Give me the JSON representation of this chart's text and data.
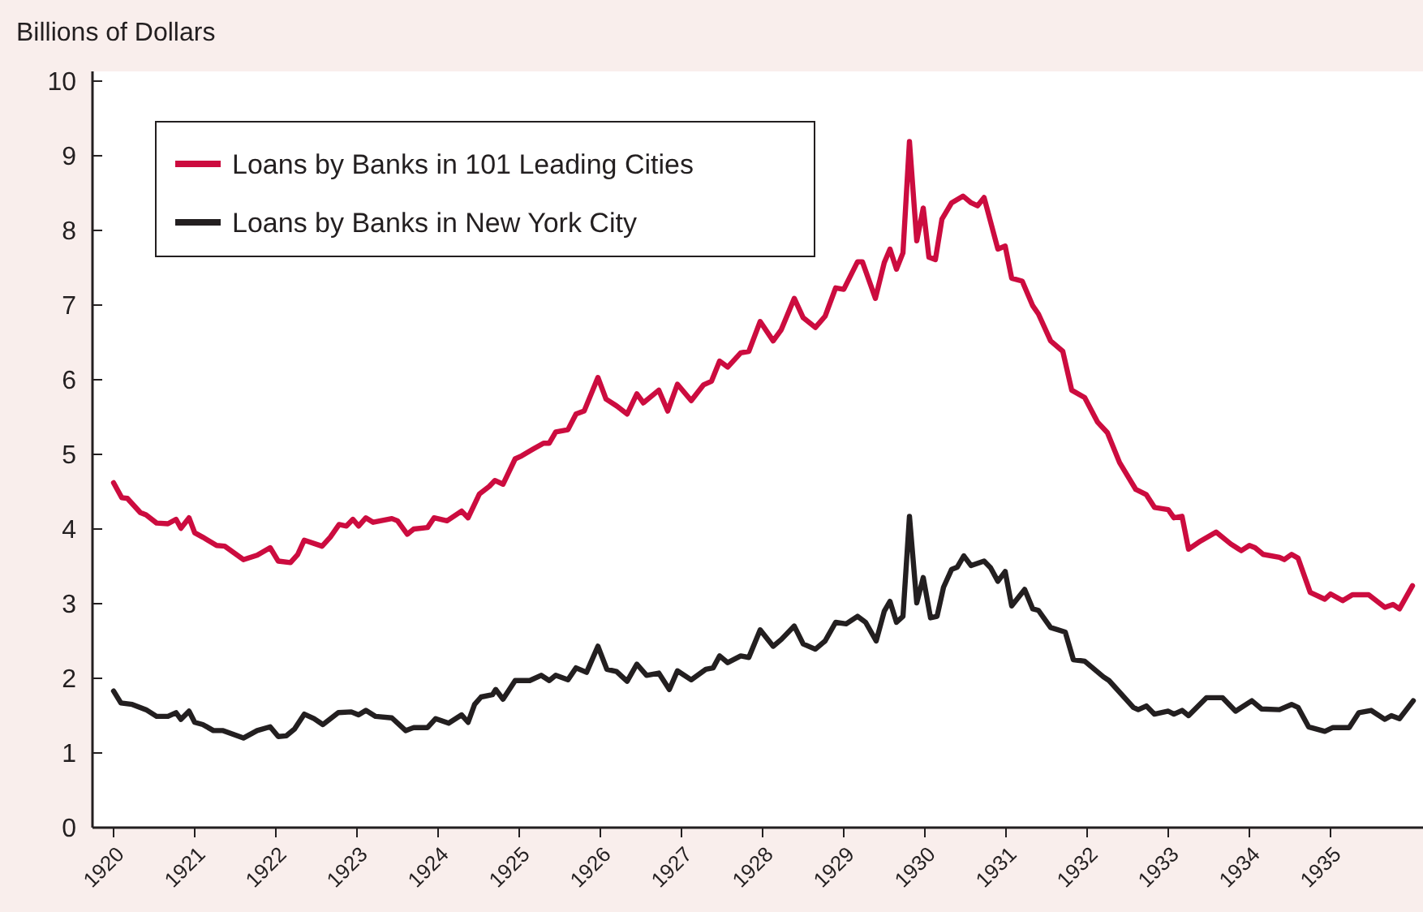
{
  "chart_data": {
    "type": "line",
    "ylabel": "Billions of Dollars",
    "xlim": [
      1919.74,
      1936.14
    ],
    "xticks": [
      1920,
      1921,
      1922,
      1923,
      1924,
      1925,
      1926,
      1927,
      1928,
      1929,
      1930,
      1931,
      1932,
      1933,
      1934,
      1935
    ],
    "ylim": [
      0,
      10.13
    ],
    "yticks": [
      0,
      1,
      2,
      3,
      4,
      5,
      6,
      7,
      8,
      9,
      10
    ],
    "grid": false,
    "legend": "top left",
    "marker": "none",
    "line_style": "solid",
    "series": [
      {
        "name": "Loans by Banks in 101 Leading Cities",
        "color": "#cc0c3f",
        "x": [
          1920.0,
          1920.1,
          1920.17,
          1920.33,
          1920.4,
          1920.53,
          1920.67,
          1920.77,
          1920.83,
          1920.93,
          1921.0,
          1921.1,
          1921.27,
          1921.37,
          1921.6,
          1921.77,
          1921.93,
          1922.03,
          1922.18,
          1922.27,
          1922.35,
          1922.57,
          1922.67,
          1922.78,
          1922.87,
          1922.95,
          1923.02,
          1923.11,
          1923.2,
          1923.43,
          1923.5,
          1923.62,
          1923.7,
          1923.87,
          1923.95,
          1924.11,
          1924.29,
          1924.37,
          1924.51,
          1924.63,
          1924.7,
          1924.8,
          1924.95,
          1925.03,
          1925.17,
          1925.3,
          1925.37,
          1925.45,
          1925.6,
          1925.7,
          1925.8,
          1925.97,
          1926.07,
          1926.2,
          1926.33,
          1926.45,
          1926.53,
          1926.72,
          1926.83,
          1926.95,
          1927.12,
          1927.27,
          1927.37,
          1927.47,
          1927.57,
          1927.73,
          1927.83,
          1927.97,
          1928.13,
          1928.23,
          1928.39,
          1928.5,
          1928.65,
          1928.77,
          1928.9,
          1929.0,
          1929.17,
          1929.23,
          1929.39,
          1929.5,
          1929.57,
          1929.65,
          1929.73,
          1929.81,
          1929.9,
          1929.98,
          1930.05,
          1930.13,
          1930.21,
          1930.33,
          1930.47,
          1930.57,
          1930.65,
          1930.73,
          1930.9,
          1930.99,
          1931.07,
          1931.2,
          1931.33,
          1931.4,
          1931.55,
          1931.7,
          1931.81,
          1931.97,
          1932.13,
          1932.25,
          1932.4,
          1932.6,
          1932.73,
          1932.83,
          1933.0,
          1933.07,
          1933.17,
          1933.25,
          1933.4,
          1933.59,
          1933.77,
          1933.9,
          1934.0,
          1934.07,
          1934.17,
          1934.37,
          1934.43,
          1934.52,
          1934.6,
          1934.75,
          1934.93,
          1935.0,
          1935.15,
          1935.27,
          1935.47,
          1935.67,
          1935.77,
          1935.85,
          1936.01
        ],
        "values": [
          4.62,
          4.42,
          4.41,
          4.22,
          4.19,
          4.08,
          4.07,
          4.13,
          4.01,
          4.15,
          3.95,
          3.89,
          3.78,
          3.77,
          3.59,
          3.65,
          3.75,
          3.57,
          3.55,
          3.66,
          3.85,
          3.77,
          3.89,
          4.06,
          4.04,
          4.13,
          4.04,
          4.15,
          4.09,
          4.14,
          4.11,
          3.93,
          4.0,
          4.02,
          4.15,
          4.11,
          4.24,
          4.15,
          4.47,
          4.57,
          4.65,
          4.6,
          4.94,
          4.98,
          5.07,
          5.15,
          5.15,
          5.3,
          5.33,
          5.54,
          5.58,
          6.03,
          5.74,
          5.65,
          5.54,
          5.81,
          5.69,
          5.86,
          5.58,
          5.94,
          5.72,
          5.93,
          5.98,
          6.25,
          6.17,
          6.36,
          6.38,
          6.78,
          6.52,
          6.67,
          7.09,
          6.83,
          6.7,
          6.85,
          7.23,
          7.21,
          7.58,
          7.58,
          7.09,
          7.57,
          7.75,
          7.48,
          7.7,
          9.19,
          7.86,
          8.3,
          7.64,
          7.61,
          8.15,
          8.37,
          8.46,
          8.37,
          8.33,
          8.44,
          7.75,
          7.79,
          7.36,
          7.32,
          6.99,
          6.88,
          6.52,
          6.38,
          5.86,
          5.76,
          5.43,
          5.29,
          4.89,
          4.53,
          4.46,
          4.29,
          4.26,
          4.15,
          4.17,
          3.73,
          3.84,
          3.96,
          3.8,
          3.71,
          3.78,
          3.75,
          3.66,
          3.62,
          3.59,
          3.66,
          3.61,
          3.15,
          3.06,
          3.13,
          3.04,
          3.12,
          3.12,
          2.95,
          2.99,
          2.93,
          3.24
        ]
      },
      {
        "name": "Loans by Banks in New York City",
        "color": "#231f20",
        "x": [
          1920.0,
          1920.09,
          1920.23,
          1920.4,
          1920.53,
          1920.67,
          1920.77,
          1920.83,
          1920.93,
          1921.0,
          1921.1,
          1921.23,
          1921.35,
          1921.6,
          1921.77,
          1921.93,
          1922.03,
          1922.13,
          1922.23,
          1922.35,
          1922.47,
          1922.58,
          1922.77,
          1922.93,
          1923.02,
          1923.11,
          1923.23,
          1923.43,
          1923.6,
          1923.7,
          1923.87,
          1923.97,
          1924.13,
          1924.29,
          1924.37,
          1924.45,
          1924.53,
          1924.67,
          1924.71,
          1924.8,
          1924.95,
          1925.13,
          1925.27,
          1925.37,
          1925.45,
          1925.6,
          1925.7,
          1925.83,
          1925.97,
          1926.08,
          1926.2,
          1926.33,
          1926.45,
          1926.57,
          1926.72,
          1926.85,
          1926.95,
          1927.12,
          1927.3,
          1927.39,
          1927.47,
          1927.57,
          1927.73,
          1927.83,
          1927.97,
          1928.13,
          1928.23,
          1928.39,
          1928.5,
          1928.65,
          1928.77,
          1928.9,
          1929.03,
          1929.17,
          1929.27,
          1929.4,
          1929.5,
          1929.57,
          1929.65,
          1929.73,
          1929.81,
          1929.9,
          1929.98,
          1930.07,
          1930.15,
          1930.23,
          1930.33,
          1930.4,
          1930.48,
          1930.57,
          1930.73,
          1930.81,
          1930.9,
          1930.99,
          1931.07,
          1931.23,
          1931.33,
          1931.4,
          1931.55,
          1931.73,
          1931.83,
          1931.97,
          1932.2,
          1932.27,
          1932.57,
          1932.63,
          1932.73,
          1932.83,
          1933.0,
          1933.07,
          1933.17,
          1933.25,
          1933.47,
          1933.67,
          1933.83,
          1934.03,
          1934.15,
          1934.37,
          1934.52,
          1934.6,
          1934.73,
          1934.93,
          1935.03,
          1935.23,
          1935.35,
          1935.5,
          1935.67,
          1935.75,
          1935.85,
          1936.02
        ],
        "values": [
          1.83,
          1.67,
          1.65,
          1.58,
          1.49,
          1.49,
          1.54,
          1.45,
          1.56,
          1.41,
          1.38,
          1.3,
          1.3,
          1.2,
          1.3,
          1.35,
          1.22,
          1.23,
          1.32,
          1.52,
          1.46,
          1.38,
          1.54,
          1.55,
          1.51,
          1.57,
          1.49,
          1.47,
          1.3,
          1.34,
          1.34,
          1.46,
          1.4,
          1.51,
          1.41,
          1.65,
          1.75,
          1.78,
          1.85,
          1.72,
          1.97,
          1.97,
          2.04,
          1.97,
          2.04,
          1.98,
          2.14,
          2.08,
          2.43,
          2.12,
          2.09,
          1.96,
          2.19,
          2.04,
          2.07,
          1.85,
          2.1,
          1.98,
          2.12,
          2.14,
          2.3,
          2.21,
          2.3,
          2.28,
          2.65,
          2.43,
          2.52,
          2.7,
          2.46,
          2.39,
          2.5,
          2.75,
          2.73,
          2.83,
          2.75,
          2.5,
          2.9,
          3.03,
          2.75,
          2.83,
          4.17,
          3.01,
          3.35,
          2.81,
          2.83,
          3.22,
          3.46,
          3.49,
          3.64,
          3.51,
          3.57,
          3.48,
          3.3,
          3.43,
          2.97,
          3.19,
          2.93,
          2.91,
          2.68,
          2.62,
          2.25,
          2.23,
          2.02,
          1.97,
          1.61,
          1.58,
          1.63,
          1.52,
          1.56,
          1.52,
          1.57,
          1.5,
          1.74,
          1.74,
          1.56,
          1.7,
          1.59,
          1.58,
          1.65,
          1.61,
          1.35,
          1.29,
          1.34,
          1.34,
          1.54,
          1.57,
          1.45,
          1.5,
          1.46,
          1.7
        ]
      }
    ]
  }
}
